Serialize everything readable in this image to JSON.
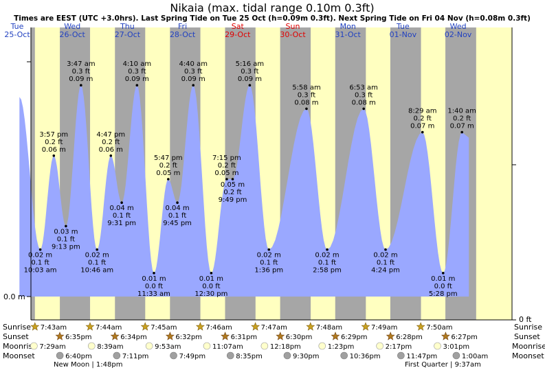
{
  "chart_data": {
    "type": "area",
    "title": "Nikaia (max. tidal range 0.10m 0.3ft)",
    "subtitle": "Times are EEST (UTC +3.0hrs). Last Spring Tide on Tue 25 Oct (h=0.09m 0.3ft). Next Spring Tide on Fri 04 Nov (h=0.08m 0.3ft)",
    "xlabel": "",
    "ylabel": "",
    "y_left_label": "0.0 m",
    "y_right_label": "0 ft",
    "ylim_m": [
      0,
      0.1
    ],
    "x_range_days": [
      0,
      8
    ],
    "days": [
      {
        "weekday": "Tue",
        "date": "25-Oct",
        "weekend": false
      },
      {
        "weekday": "Wed",
        "date": "26-Oct",
        "weekend": false
      },
      {
        "weekday": "Thu",
        "date": "27-Oct",
        "weekend": false
      },
      {
        "weekday": "Fri",
        "date": "28-Oct",
        "weekend": false
      },
      {
        "weekday": "Sat",
        "date": "29-Oct",
        "weekend": true
      },
      {
        "weekday": "Sun",
        "date": "30-Oct",
        "weekend": true
      },
      {
        "weekday": "Mon",
        "date": "31-Oct",
        "weekend": false
      },
      {
        "weekday": "Tue",
        "date": "01-Nov",
        "weekend": false
      },
      {
        "weekday": "Wed",
        "date": "02-Nov",
        "weekend": false
      }
    ],
    "daylight": [
      {
        "sunrise": "7:43am",
        "sunset": "6:35pm",
        "sunrise_h": 7.72,
        "sunset_h": 18.58
      },
      {
        "sunrise": "7:44am",
        "sunset": "6:34pm",
        "sunrise_h": 7.73,
        "sunset_h": 18.57
      },
      {
        "sunrise": "7:45am",
        "sunset": "6:32pm",
        "sunrise_h": 7.75,
        "sunset_h": 18.53
      },
      {
        "sunrise": "7:46am",
        "sunset": "6:31pm",
        "sunrise_h": 7.77,
        "sunset_h": 18.52
      },
      {
        "sunrise": "7:47am",
        "sunset": "6:30pm",
        "sunrise_h": 7.78,
        "sunset_h": 18.5
      },
      {
        "sunrise": "7:48am",
        "sunset": "6:29pm",
        "sunrise_h": 7.8,
        "sunset_h": 18.48
      },
      {
        "sunrise": "7:49am",
        "sunset": "6:28pm",
        "sunrise_h": 7.82,
        "sunset_h": 18.47
      },
      {
        "sunrise": "7:50am",
        "sunset": "6:27pm",
        "sunrise_h": 7.83,
        "sunset_h": 18.45
      }
    ],
    "series": [
      {
        "name": "Tide height (m)",
        "points": [
          {
            "day": 0,
            "hour": 1.0,
            "m": 0.085
          },
          {
            "day": 0,
            "hour": 10.05,
            "m": 0.02
          },
          {
            "day": 0,
            "hour": 15.95,
            "m": 0.06
          },
          {
            "day": 0,
            "hour": 21.22,
            "m": 0.03
          },
          {
            "day": 1,
            "hour": 3.78,
            "m": 0.09
          },
          {
            "day": 1,
            "hour": 10.77,
            "m": 0.02
          },
          {
            "day": 1,
            "hour": 16.78,
            "m": 0.06
          },
          {
            "day": 1,
            "hour": 21.52,
            "m": 0.04
          },
          {
            "day": 2,
            "hour": 4.17,
            "m": 0.09
          },
          {
            "day": 2,
            "hour": 11.55,
            "m": 0.01
          },
          {
            "day": 2,
            "hour": 17.78,
            "m": 0.05
          },
          {
            "day": 2,
            "hour": 21.75,
            "m": 0.04
          },
          {
            "day": 3,
            "hour": 4.67,
            "m": 0.09
          },
          {
            "day": 3,
            "hour": 12.5,
            "m": 0.01
          },
          {
            "day": 3,
            "hour": 19.25,
            "m": 0.05
          },
          {
            "day": 3,
            "hour": 21.82,
            "m": 0.05
          },
          {
            "day": 4,
            "hour": 5.27,
            "m": 0.09
          },
          {
            "day": 4,
            "hour": 13.6,
            "m": 0.02
          },
          {
            "day": 5,
            "hour": 5.97,
            "m": 0.08
          },
          {
            "day": 5,
            "hour": 14.97,
            "m": 0.02
          },
          {
            "day": 6,
            "hour": 6.88,
            "m": 0.08
          },
          {
            "day": 6,
            "hour": 16.4,
            "m": 0.02
          },
          {
            "day": 7,
            "hour": 8.48,
            "m": 0.07
          },
          {
            "day": 7,
            "hour": 17.47,
            "m": 0.01
          },
          {
            "day": 8,
            "hour": 1.67,
            "m": 0.07
          }
        ]
      }
    ],
    "tide_labels": [
      {
        "day": 0,
        "hour": 10.05,
        "m": 0.02,
        "type": "low",
        "time": "10:03 am",
        "ft": "0.1 ft",
        "meters": "0.02 m"
      },
      {
        "day": 0,
        "hour": 15.95,
        "m": 0.06,
        "type": "high",
        "time": "3:57 pm",
        "ft": "0.2 ft",
        "meters": "0.06 m"
      },
      {
        "day": 0,
        "hour": 21.22,
        "m": 0.03,
        "type": "low",
        "time": "9:13 pm",
        "ft": "0.1 ft",
        "meters": "0.03 m"
      },
      {
        "day": 1,
        "hour": 3.78,
        "m": 0.09,
        "type": "high",
        "time": "3:47 am",
        "ft": "0.3 ft",
        "meters": "0.09 m"
      },
      {
        "day": 1,
        "hour": 10.77,
        "m": 0.02,
        "type": "low",
        "time": "10:46 am",
        "ft": "0.1 ft",
        "meters": "0.02 m"
      },
      {
        "day": 1,
        "hour": 16.78,
        "m": 0.06,
        "type": "high",
        "time": "4:47 pm",
        "ft": "0.2 ft",
        "meters": "0.06 m"
      },
      {
        "day": 1,
        "hour": 21.52,
        "m": 0.04,
        "type": "low",
        "time": "9:31 pm",
        "ft": "0.1 ft",
        "meters": "0.04 m"
      },
      {
        "day": 2,
        "hour": 4.17,
        "m": 0.09,
        "type": "high",
        "time": "4:10 am",
        "ft": "0.3 ft",
        "meters": "0.09 m"
      },
      {
        "day": 2,
        "hour": 11.55,
        "m": 0.01,
        "type": "low",
        "time": "11:33 am",
        "ft": "0.0 ft",
        "meters": "0.01 m"
      },
      {
        "day": 2,
        "hour": 17.78,
        "m": 0.05,
        "type": "high",
        "time": "5:47 pm",
        "ft": "0.2 ft",
        "meters": "0.05 m"
      },
      {
        "day": 2,
        "hour": 21.75,
        "m": 0.04,
        "type": "low",
        "time": "9:45 pm",
        "ft": "0.1 ft",
        "meters": "0.04 m"
      },
      {
        "day": 3,
        "hour": 4.67,
        "m": 0.09,
        "type": "high",
        "time": "4:40 am",
        "ft": "0.3 ft",
        "meters": "0.09 m"
      },
      {
        "day": 3,
        "hour": 12.5,
        "m": 0.01,
        "type": "low",
        "time": "12:30 pm",
        "ft": "0.0 ft",
        "meters": "0.01 m"
      },
      {
        "day": 3,
        "hour": 19.25,
        "m": 0.05,
        "type": "high",
        "time": "7:15 pm",
        "ft": "0.2 ft",
        "meters": "0.05 m"
      },
      {
        "day": 3,
        "hour": 21.82,
        "m": 0.05,
        "type": "low",
        "time": "9:49 pm",
        "ft": "0.2 ft",
        "meters": "0.05 m"
      },
      {
        "day": 4,
        "hour": 5.27,
        "m": 0.09,
        "type": "high",
        "time": "5:16 am",
        "ft": "0.3 ft",
        "meters": "0.09 m"
      },
      {
        "day": 4,
        "hour": 13.6,
        "m": 0.02,
        "type": "low",
        "time": "1:36 pm",
        "ft": "0.1 ft",
        "meters": "0.02 m"
      },
      {
        "day": 5,
        "hour": 5.97,
        "m": 0.08,
        "type": "high",
        "time": "5:58 am",
        "ft": "0.3 ft",
        "meters": "0.08 m"
      },
      {
        "day": 5,
        "hour": 14.97,
        "m": 0.02,
        "type": "low",
        "time": "2:58 pm",
        "ft": "0.1 ft",
        "meters": "0.02 m"
      },
      {
        "day": 6,
        "hour": 6.88,
        "m": 0.08,
        "type": "high",
        "time": "6:53 am",
        "ft": "0.3 ft",
        "meters": "0.08 m"
      },
      {
        "day": 6,
        "hour": 16.4,
        "m": 0.02,
        "type": "low",
        "time": "4:24 pm",
        "ft": "0.1 ft",
        "meters": "0.02 m"
      },
      {
        "day": 7,
        "hour": 8.48,
        "m": 0.07,
        "type": "high",
        "time": "8:29 am",
        "ft": "0.2 ft",
        "meters": "0.07 m"
      },
      {
        "day": 7,
        "hour": 17.47,
        "m": 0.01,
        "type": "low",
        "time": "5:28 pm",
        "ft": "0.0 ft",
        "meters": "0.01 m"
      },
      {
        "day": 8,
        "hour": 1.67,
        "m": 0.07,
        "type": "high",
        "time": "1:40 am",
        "ft": "0.2 ft",
        "meters": "0.07 m"
      }
    ],
    "legend_labels": {
      "sunrise": "Sunrise",
      "sunset": "Sunset",
      "moonrise": "Moonrise",
      "moonset": "Moonset"
    },
    "sun_moon": [
      {
        "sunrise": "7:43am",
        "sunset": "6:35pm",
        "moonrise": "7:29am",
        "moonset": "6:40pm"
      },
      {
        "sunrise": "7:44am",
        "sunset": "6:34pm",
        "moonrise": "8:39am",
        "moonset": "7:11pm"
      },
      {
        "sunrise": "7:45am",
        "sunset": "6:32pm",
        "moonrise": "9:53am",
        "moonset": "7:49pm"
      },
      {
        "sunrise": "7:46am",
        "sunset": "6:31pm",
        "moonrise": "11:07am",
        "moonset": "8:35pm"
      },
      {
        "sunrise": "7:47am",
        "sunset": "6:30pm",
        "moonrise": "12:18pm",
        "moonset": "9:30pm"
      },
      {
        "sunrise": "7:48am",
        "sunset": "6:29pm",
        "moonrise": "1:23pm",
        "moonset": "10:36pm"
      },
      {
        "sunrise": "7:49am",
        "sunset": "6:28pm",
        "moonrise": "2:17pm",
        "moonset": "11:47pm"
      },
      {
        "sunrise": "7:50am",
        "sunset": "6:27pm",
        "moonrise": "3:01pm",
        "moonset": "1:00am"
      }
    ],
    "moon_phases": [
      {
        "label": "New Moon",
        "time": "1:48pm",
        "day": 0
      },
      {
        "label": "First Quarter",
        "time": "9:37am",
        "day": 7
      }
    ]
  },
  "colors": {
    "night": "#a6a6a6",
    "day": "#ffffc0",
    "tide": "#9aa8ff",
    "date_weekday": "#2040c0",
    "date_weekend": "#e00000",
    "star": "#c8a020",
    "moon_rise": "#ffffcc",
    "moon_set": "#a0a0a0"
  }
}
